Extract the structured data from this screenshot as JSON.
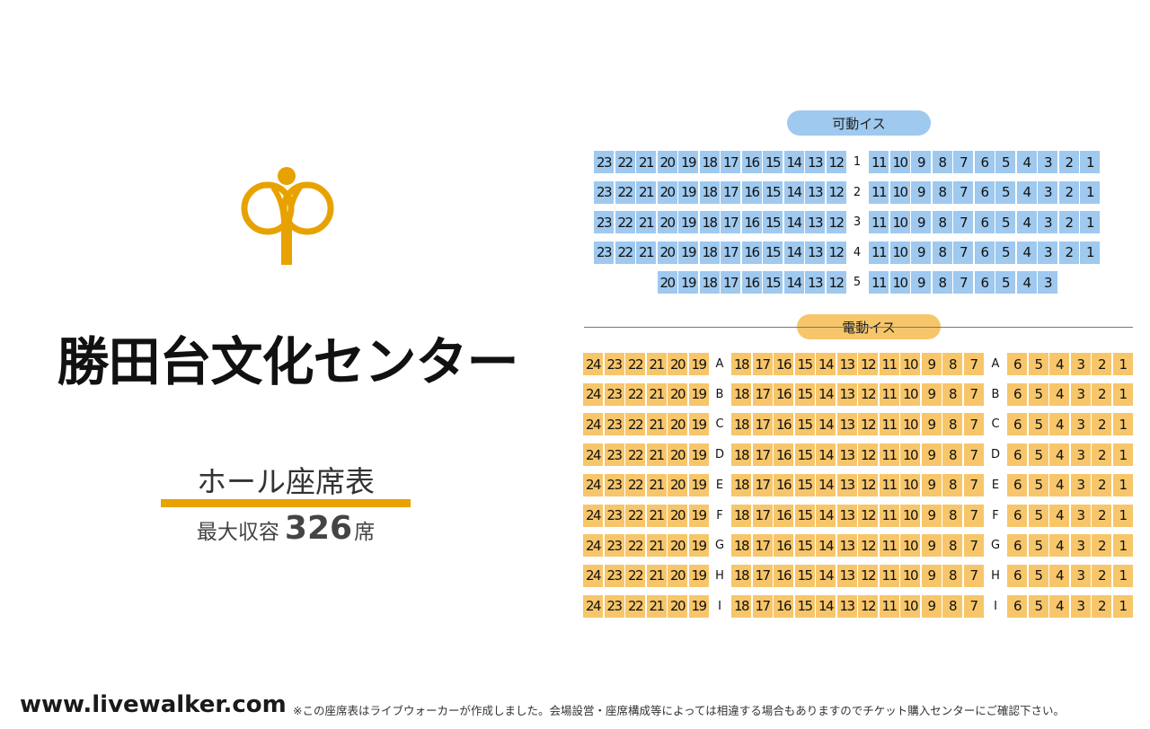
{
  "venue": {
    "name": "勝田台文化センター",
    "subtitle": "ホール座席表",
    "capacity_label": "最大収容",
    "capacity_value": "326",
    "capacity_unit": "席",
    "logo_icon": "venue-logo-icon"
  },
  "colors": {
    "accent": "#e8a200",
    "movable_seat": "#9fc9ef",
    "powered_seat": "#f7c66b"
  },
  "sections": {
    "movable": {
      "label": "可動イス",
      "rows": [
        {
          "label": "1",
          "left": [
            "23",
            "22",
            "21",
            "20",
            "19",
            "18",
            "17",
            "16",
            "15",
            "14",
            "13",
            "12"
          ],
          "right": [
            "11",
            "10",
            "9",
            "8",
            "7",
            "6",
            "5",
            "4",
            "3",
            "2",
            "1"
          ]
        },
        {
          "label": "2",
          "left": [
            "23",
            "22",
            "21",
            "20",
            "19",
            "18",
            "17",
            "16",
            "15",
            "14",
            "13",
            "12"
          ],
          "right": [
            "11",
            "10",
            "9",
            "8",
            "7",
            "6",
            "5",
            "4",
            "3",
            "2",
            "1"
          ]
        },
        {
          "label": "3",
          "left": [
            "23",
            "22",
            "21",
            "20",
            "19",
            "18",
            "17",
            "16",
            "15",
            "14",
            "13",
            "12"
          ],
          "right": [
            "11",
            "10",
            "9",
            "8",
            "7",
            "6",
            "5",
            "4",
            "3",
            "2",
            "1"
          ]
        },
        {
          "label": "4",
          "left": [
            "23",
            "22",
            "21",
            "20",
            "19",
            "18",
            "17",
            "16",
            "15",
            "14",
            "13",
            "12"
          ],
          "right": [
            "11",
            "10",
            "9",
            "8",
            "7",
            "6",
            "5",
            "4",
            "3",
            "2",
            "1"
          ]
        },
        {
          "label": "5",
          "left": [
            "20",
            "19",
            "18",
            "17",
            "16",
            "15",
            "14",
            "13",
            "12"
          ],
          "right": [
            "11",
            "10",
            "9",
            "8",
            "7",
            "6",
            "5",
            "4",
            "3"
          ]
        }
      ]
    },
    "powered": {
      "label": "電動イス",
      "rows": [
        {
          "label": "A",
          "left": [
            "24",
            "23",
            "22",
            "21",
            "20",
            "19"
          ],
          "center": [
            "18",
            "17",
            "16",
            "15",
            "14",
            "13",
            "12",
            "11",
            "10",
            "9",
            "8",
            "7"
          ],
          "right": [
            "6",
            "5",
            "4",
            "3",
            "2",
            "1"
          ]
        },
        {
          "label": "B",
          "left": [
            "24",
            "23",
            "22",
            "21",
            "20",
            "19"
          ],
          "center": [
            "18",
            "17",
            "16",
            "15",
            "14",
            "13",
            "12",
            "11",
            "10",
            "9",
            "8",
            "7"
          ],
          "right": [
            "6",
            "5",
            "4",
            "3",
            "2",
            "1"
          ]
        },
        {
          "label": "C",
          "left": [
            "24",
            "23",
            "22",
            "21",
            "20",
            "19"
          ],
          "center": [
            "18",
            "17",
            "16",
            "15",
            "14",
            "13",
            "12",
            "11",
            "10",
            "9",
            "8",
            "7"
          ],
          "right": [
            "6",
            "5",
            "4",
            "3",
            "2",
            "1"
          ]
        },
        {
          "label": "D",
          "left": [
            "24",
            "23",
            "22",
            "21",
            "20",
            "19"
          ],
          "center": [
            "18",
            "17",
            "16",
            "15",
            "14",
            "13",
            "12",
            "11",
            "10",
            "9",
            "8",
            "7"
          ],
          "right": [
            "6",
            "5",
            "4",
            "3",
            "2",
            "1"
          ]
        },
        {
          "label": "E",
          "left": [
            "24",
            "23",
            "22",
            "21",
            "20",
            "19"
          ],
          "center": [
            "18",
            "17",
            "16",
            "15",
            "14",
            "13",
            "12",
            "11",
            "10",
            "9",
            "8",
            "7"
          ],
          "right": [
            "6",
            "5",
            "4",
            "3",
            "2",
            "1"
          ]
        },
        {
          "label": "F",
          "left": [
            "24",
            "23",
            "22",
            "21",
            "20",
            "19"
          ],
          "center": [
            "18",
            "17",
            "16",
            "15",
            "14",
            "13",
            "12",
            "11",
            "10",
            "9",
            "8",
            "7"
          ],
          "right": [
            "6",
            "5",
            "4",
            "3",
            "2",
            "1"
          ]
        },
        {
          "label": "G",
          "left": [
            "24",
            "23",
            "22",
            "21",
            "20",
            "19"
          ],
          "center": [
            "18",
            "17",
            "16",
            "15",
            "14",
            "13",
            "12",
            "11",
            "10",
            "9",
            "8",
            "7"
          ],
          "right": [
            "6",
            "5",
            "4",
            "3",
            "2",
            "1"
          ]
        },
        {
          "label": "H",
          "left": [
            "24",
            "23",
            "22",
            "21",
            "20",
            "19"
          ],
          "center": [
            "18",
            "17",
            "16",
            "15",
            "14",
            "13",
            "12",
            "11",
            "10",
            "9",
            "8",
            "7"
          ],
          "right": [
            "6",
            "5",
            "4",
            "3",
            "2",
            "1"
          ]
        },
        {
          "label": "I",
          "left": [
            "24",
            "23",
            "22",
            "21",
            "20",
            "19"
          ],
          "center": [
            "18",
            "17",
            "16",
            "15",
            "14",
            "13",
            "12",
            "11",
            "10",
            "9",
            "8",
            "7"
          ],
          "right": [
            "6",
            "5",
            "4",
            "3",
            "2",
            "1"
          ]
        }
      ]
    }
  },
  "footer": {
    "site": "www.livewalker.com",
    "note": "※この座席表はライブウォーカーが作成しました。会場設営・座席構成等によっては相違する場合もありますのでチケット購入センターにご確認下さい。"
  }
}
